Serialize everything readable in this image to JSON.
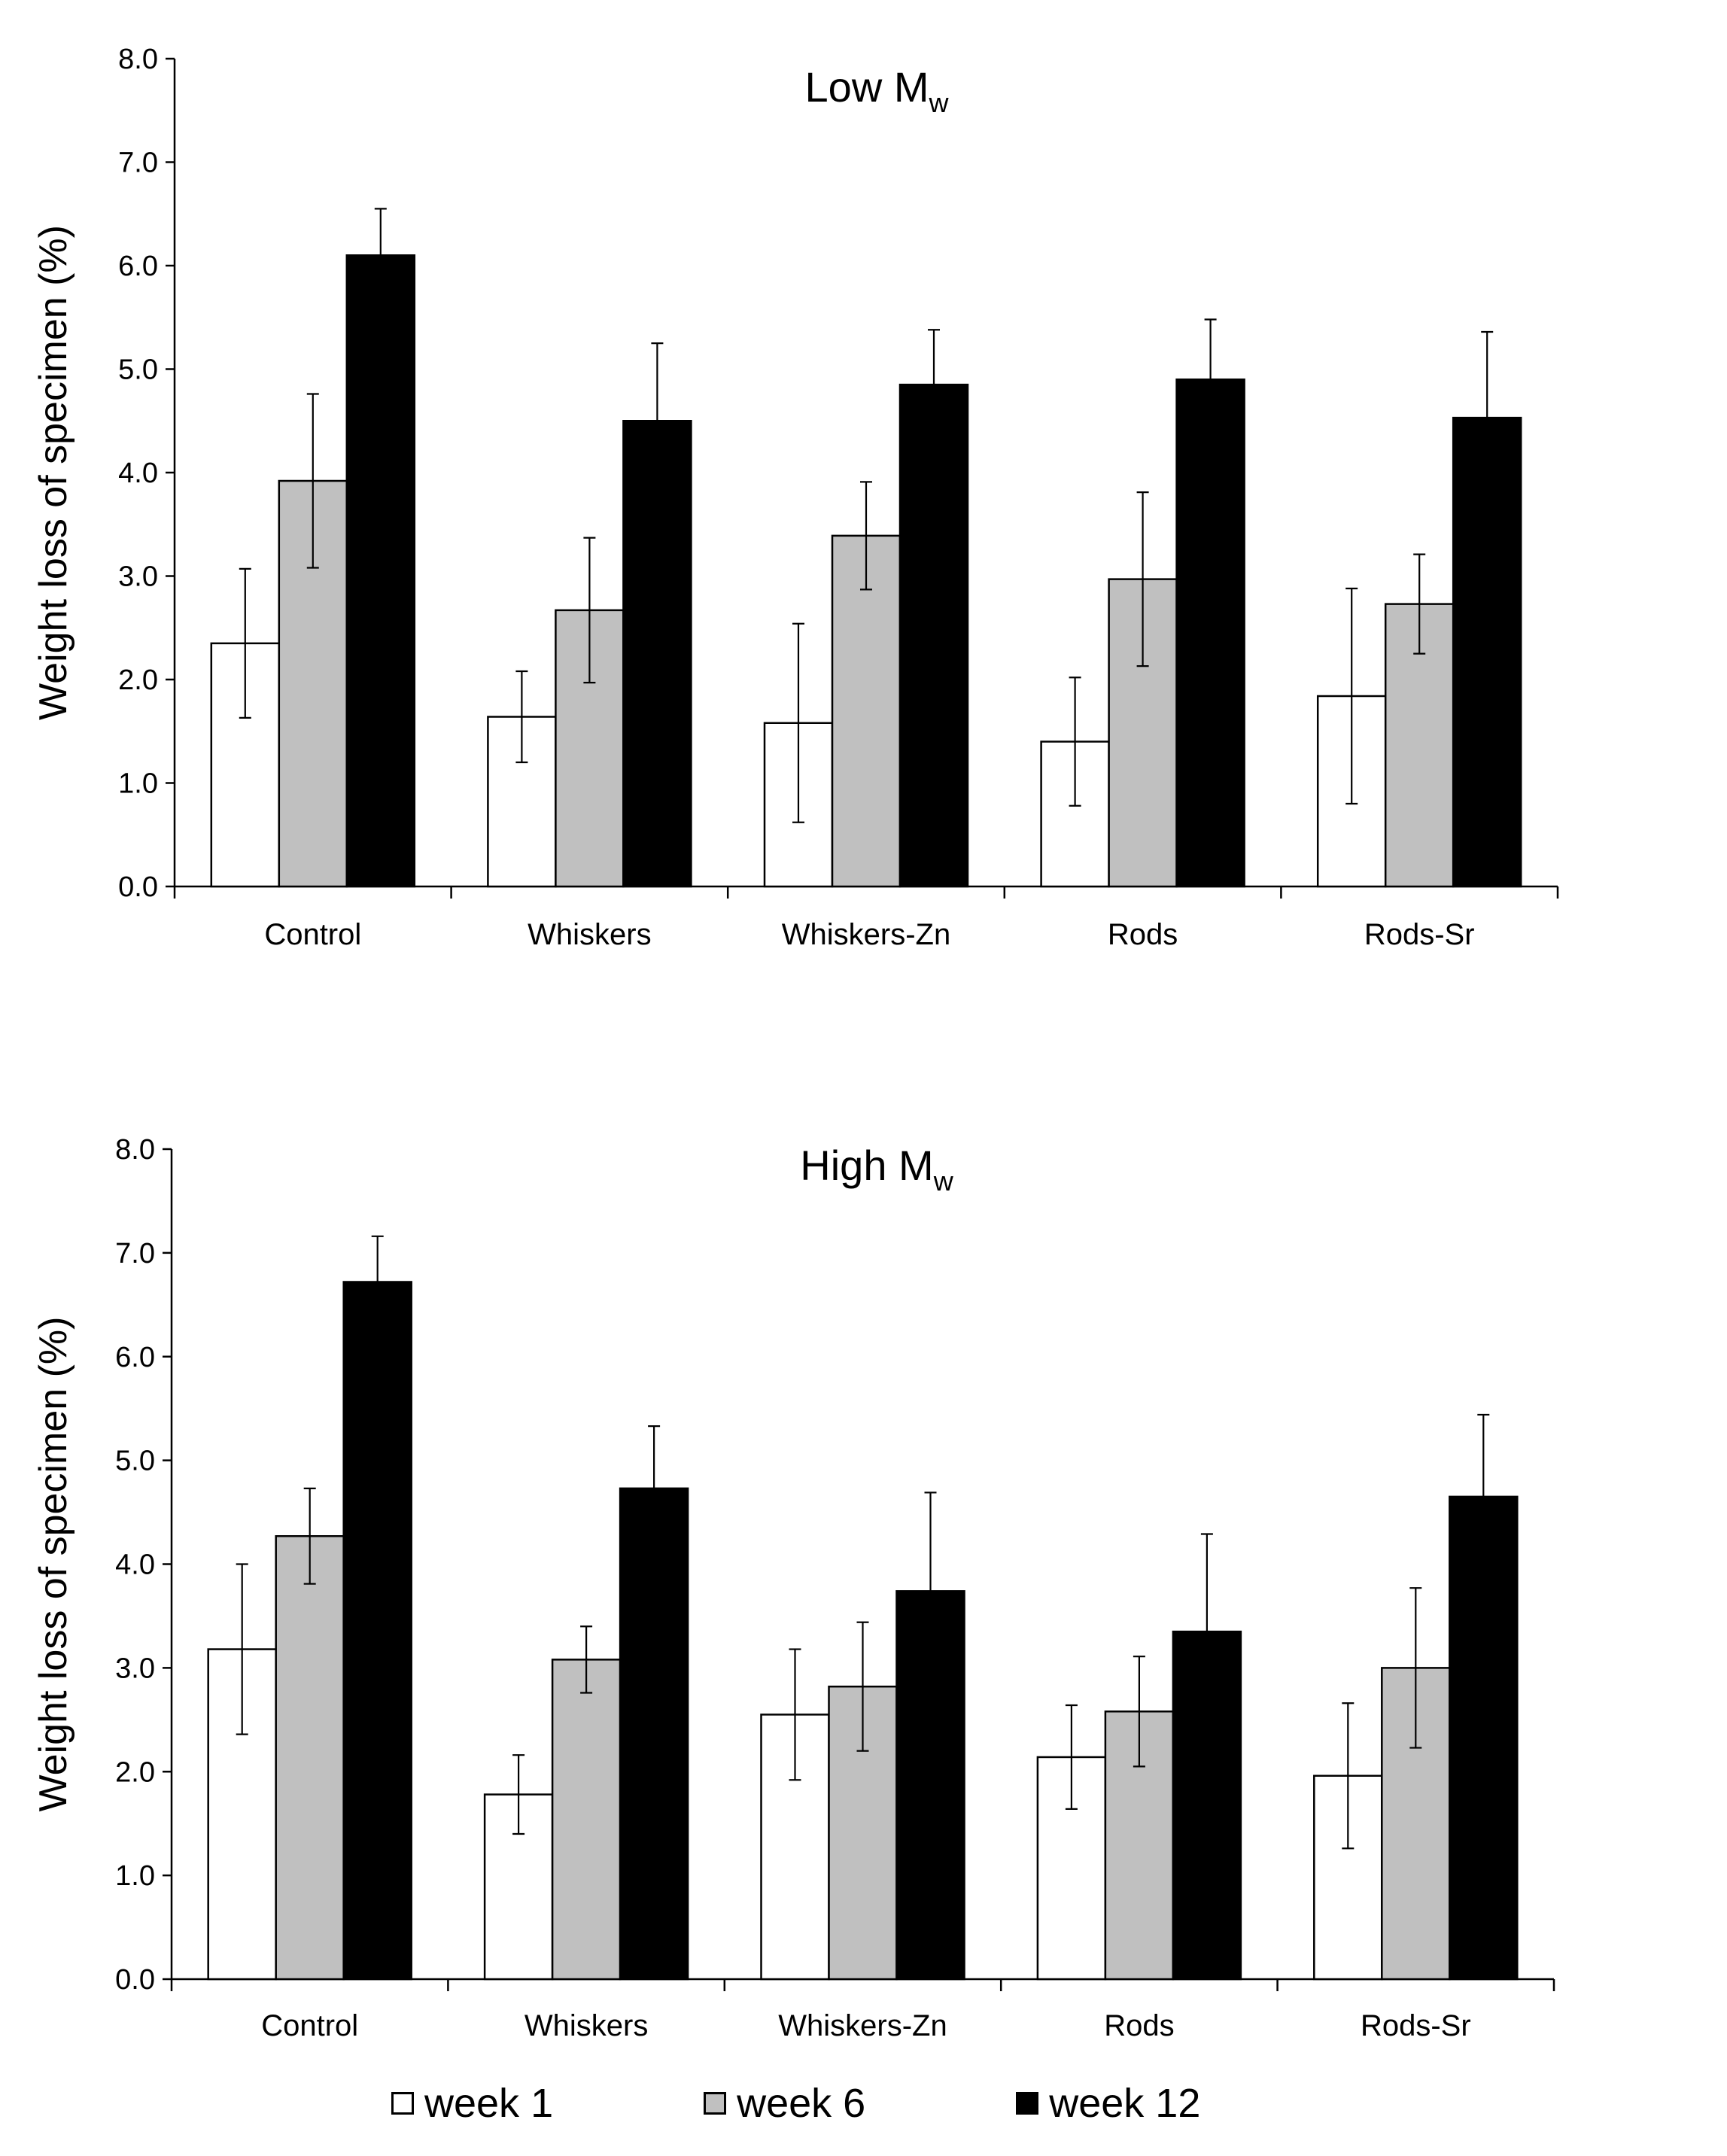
{
  "chart_data": [
    {
      "type": "bar",
      "title": "Low M",
      "title_subscript": "w",
      "ylabel": "Weight loss of specimen (%)",
      "xlabel": "",
      "ylim": [
        0,
        8
      ],
      "yticks": [
        "0.0",
        "1.0",
        "2.0",
        "3.0",
        "4.0",
        "5.0",
        "6.0",
        "7.0",
        "8.0"
      ],
      "categories": [
        "Control",
        "Whiskers",
        "Whiskers-Zn",
        "Rods",
        "Rods-Sr"
      ],
      "series": [
        {
          "name": "week 1",
          "values": [
            2.35,
            1.64,
            1.58,
            1.4,
            1.84
          ],
          "errors": [
            0.72,
            0.44,
            0.96,
            0.62,
            1.04
          ]
        },
        {
          "name": "week 6",
          "values": [
            3.92,
            2.67,
            3.39,
            2.97,
            2.73
          ],
          "errors": [
            0.84,
            0.7,
            0.52,
            0.84,
            0.48
          ]
        },
        {
          "name": "week 12",
          "values": [
            6.1,
            4.5,
            4.85,
            4.9,
            4.53
          ],
          "errors": [
            0.45,
            0.75,
            0.53,
            0.58,
            0.83
          ]
        }
      ]
    },
    {
      "type": "bar",
      "title": "High M",
      "title_subscript": "w",
      "ylabel": "Weight loss of specimen (%)",
      "xlabel": "",
      "ylim": [
        0,
        8
      ],
      "yticks": [
        "0.0",
        "1.0",
        "2.0",
        "3.0",
        "4.0",
        "5.0",
        "6.0",
        "7.0",
        "8.0"
      ],
      "categories": [
        "Control",
        "Whiskers",
        "Whiskers-Zn",
        "Rods",
        "Rods-Sr"
      ],
      "series": [
        {
          "name": "week 1",
          "values": [
            3.18,
            1.78,
            2.55,
            2.14,
            1.96
          ],
          "errors": [
            0.82,
            0.38,
            0.63,
            0.5,
            0.7
          ]
        },
        {
          "name": "week 6",
          "values": [
            4.27,
            3.08,
            2.82,
            2.58,
            3.0
          ],
          "errors": [
            0.46,
            0.32,
            0.62,
            0.53,
            0.77
          ]
        },
        {
          "name": "week 12",
          "values": [
            6.72,
            4.73,
            3.74,
            3.35,
            4.65
          ],
          "errors": [
            0.44,
            0.6,
            0.95,
            0.94,
            0.79
          ]
        }
      ]
    }
  ],
  "legend": [
    {
      "label": "week 1",
      "color": "#ffffff"
    },
    {
      "label": "week 6",
      "color": "#c0c0c0"
    },
    {
      "label": "week 12",
      "color": "#000000"
    }
  ]
}
